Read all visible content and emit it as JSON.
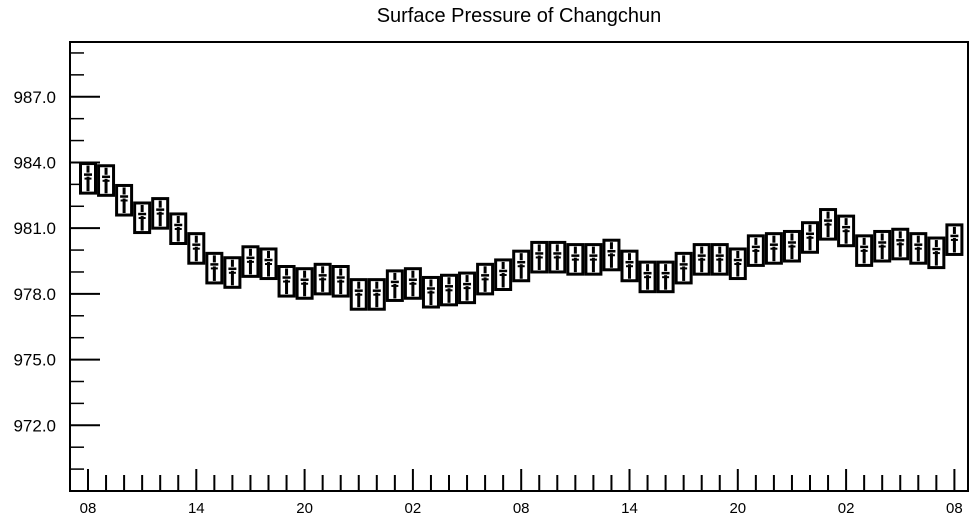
{
  "chart_data": {
    "type": "box",
    "title": "Surface Pressure of Changchun",
    "xlabel": "",
    "ylabel": "",
    "x_tick_labels": [
      "08",
      "14",
      "20",
      "02",
      "08",
      "14",
      "20",
      "02",
      "08"
    ],
    "y_ticks": [
      972.0,
      975.0,
      978.0,
      981.0,
      984.0,
      987.0
    ],
    "y_tick_labels": [
      "972.0",
      "975.0",
      "978.0",
      "981.0",
      "984.0",
      "987.0"
    ],
    "ylim": [
      969.0,
      989.5
    ],
    "x_step_hours": 1,
    "grid": false,
    "legend": "none",
    "series": [
      {
        "values": [
          983.4,
          983.3,
          982.4,
          981.6,
          981.8,
          981.1,
          980.2,
          979.3,
          979.1,
          979.6,
          979.5,
          978.7,
          978.6,
          978.8,
          978.7,
          978.1,
          978.1,
          978.5,
          978.6,
          978.2,
          978.3,
          978.4,
          978.8,
          979.0,
          979.4,
          979.8,
          979.8,
          979.7,
          979.7,
          979.9,
          979.4,
          978.9,
          978.9,
          979.3,
          979.7,
          979.7,
          979.5,
          980.1,
          980.2,
          980.3,
          980.7,
          981.3,
          981.0,
          980.1,
          980.3,
          980.4,
          980.2,
          980.0,
          980.6
        ]
      }
    ]
  }
}
